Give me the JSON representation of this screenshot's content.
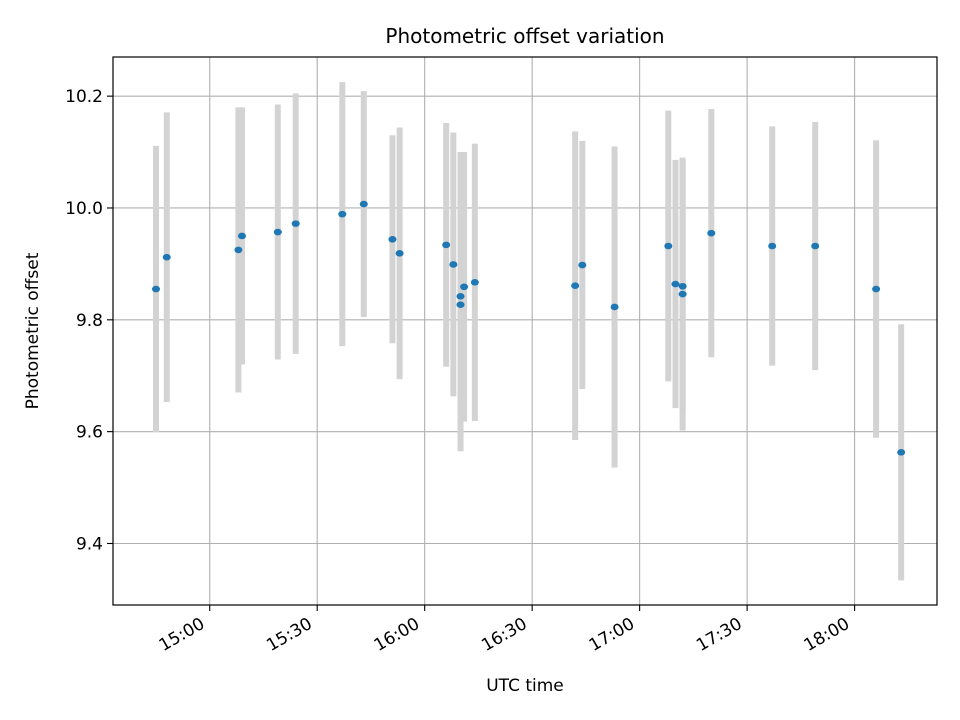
{
  "chart_data": {
    "type": "scatter",
    "title": "Photometric offset variation",
    "xlabel": "UTC time",
    "ylabel": "Photometric offset",
    "xlim": [
      "14:33",
      "18:23"
    ],
    "ylim": [
      9.29,
      10.27
    ],
    "x_ticks": [
      "15:00",
      "15:30",
      "16:00",
      "16:30",
      "17:00",
      "17:30",
      "18:00"
    ],
    "y_ticks": [
      9.4,
      9.6,
      9.8,
      10.0,
      10.2
    ],
    "y_tick_labels": [
      "9.4",
      "9.6",
      "9.8",
      "10.0",
      "10.2"
    ],
    "grid": true,
    "marker_color": "#1f77b4",
    "errorbar_color": "#d3d3d3",
    "points": [
      {
        "x": "14:45",
        "y": 9.855,
        "err": 0.256
      },
      {
        "x": "14:48",
        "y": 9.912,
        "err": 0.259
      },
      {
        "x": "15:08",
        "y": 9.925,
        "err": 0.255
      },
      {
        "x": "15:09",
        "y": 9.95,
        "err": 0.23
      },
      {
        "x": "15:19",
        "y": 9.957,
        "err": 0.228
      },
      {
        "x": "15:24",
        "y": 9.972,
        "err": 0.233
      },
      {
        "x": "15:37",
        "y": 9.989,
        "err": 0.236
      },
      {
        "x": "15:43",
        "y": 10.007,
        "err": 0.202
      },
      {
        "x": "15:51",
        "y": 9.944,
        "err": 0.186
      },
      {
        "x": "15:53",
        "y": 9.919,
        "err": 0.225
      },
      {
        "x": "16:06",
        "y": 9.934,
        "err": 0.218
      },
      {
        "x": "16:08",
        "y": 9.899,
        "err": 0.236
      },
      {
        "x": "16:10",
        "y": 9.827,
        "err": 0.262
      },
      {
        "x": "16:10",
        "y": 9.842,
        "err": 0.258
      },
      {
        "x": "16:11",
        "y": 9.859,
        "err": 0.241
      },
      {
        "x": "16:14",
        "y": 9.867,
        "err": 0.248
      },
      {
        "x": "16:42",
        "y": 9.861,
        "err": 0.276
      },
      {
        "x": "16:44",
        "y": 9.898,
        "err": 0.222
      },
      {
        "x": "16:53",
        "y": 9.823,
        "err": 0.287
      },
      {
        "x": "17:08",
        "y": 9.932,
        "err": 0.242
      },
      {
        "x": "17:10",
        "y": 9.864,
        "err": 0.222
      },
      {
        "x": "17:12",
        "y": 9.86,
        "err": 0.226
      },
      {
        "x": "17:12",
        "y": 9.846,
        "err": 0.244
      },
      {
        "x": "17:20",
        "y": 9.955,
        "err": 0.222
      },
      {
        "x": "17:37",
        "y": 9.932,
        "err": 0.214
      },
      {
        "x": "17:49",
        "y": 9.932,
        "err": 0.222
      },
      {
        "x": "18:06",
        "y": 9.855,
        "err": 0.266
      },
      {
        "x": "18:13",
        "y": 9.563,
        "err": 0.229
      }
    ]
  }
}
